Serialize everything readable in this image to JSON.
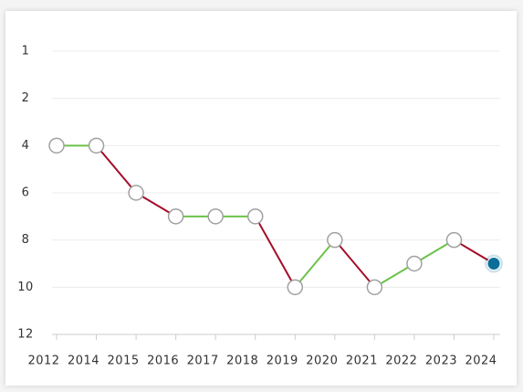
{
  "chart_data": {
    "type": "line",
    "categories": [
      "2012",
      "2014",
      "2015",
      "2016",
      "2017",
      "2018",
      "2019",
      "2020",
      "2021",
      "2022",
      "2023",
      "2024"
    ],
    "values": [
      4,
      4,
      6,
      7,
      7,
      7,
      10,
      8,
      10,
      9,
      8,
      9
    ],
    "ylim": [
      1,
      12
    ],
    "yticks": [
      1,
      2,
      4,
      6,
      8,
      10,
      12
    ],
    "y_inverted": true,
    "improve_color": "#6cc24a",
    "decline_color": "#a50d2a",
    "marker_color": "#ffffff",
    "marker_stroke": "#a0a0a0",
    "last_marker_color": "#0b6e99",
    "grid": true
  }
}
